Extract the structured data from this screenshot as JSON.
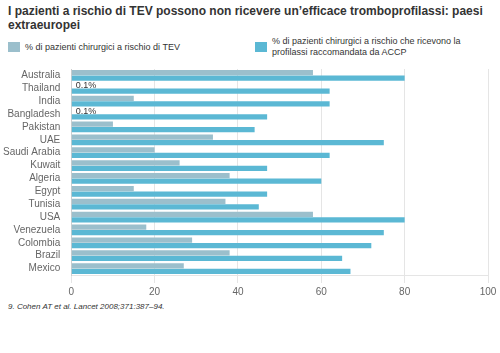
{
  "chart_data": {
    "type": "bar",
    "orientation": "horizontal",
    "title": "I pazienti a rischio di TEV possono non ricevere un’efficace tromboprofilassi: paesi extraeuropei",
    "categories": [
      "Australia",
      "Thailand",
      "India",
      "Bangladesh",
      "Pakistan",
      "UAE",
      "Saudi Arabia",
      "Kuwait",
      "Algeria",
      "Egypt",
      "Tunisia",
      "USA",
      "Venezuela",
      "Colombia",
      "Brazil",
      "Mexico"
    ],
    "series": [
      {
        "name": "% di pazienti chirurgici a rischio di TEV",
        "color": "#9bbfcc",
        "values": [
          58,
          0.1,
          15,
          0.1,
          10,
          34,
          20,
          26,
          38,
          15,
          37,
          58,
          18,
          29,
          38,
          27
        ],
        "value_labels": [
          null,
          "0.1%",
          null,
          "0.1%",
          null,
          null,
          null,
          null,
          null,
          null,
          null,
          null,
          null,
          null,
          null,
          null
        ]
      },
      {
        "name": "% di pazienti chirurgici a rischio che ricevono la profilassi raccomandata da ACCP",
        "color": "#5bb8d4",
        "values": [
          80,
          62,
          62,
          47,
          44,
          75,
          62,
          47,
          60,
          47,
          45,
          80,
          75,
          72,
          65,
          67
        ]
      }
    ],
    "xlim": [
      0,
      100
    ],
    "xticks": [
      0,
      20,
      40,
      60,
      80,
      100
    ],
    "grid": true,
    "annotations": [
      "9. Cohen AT et al. Lancet 2008;371:387–94."
    ]
  }
}
